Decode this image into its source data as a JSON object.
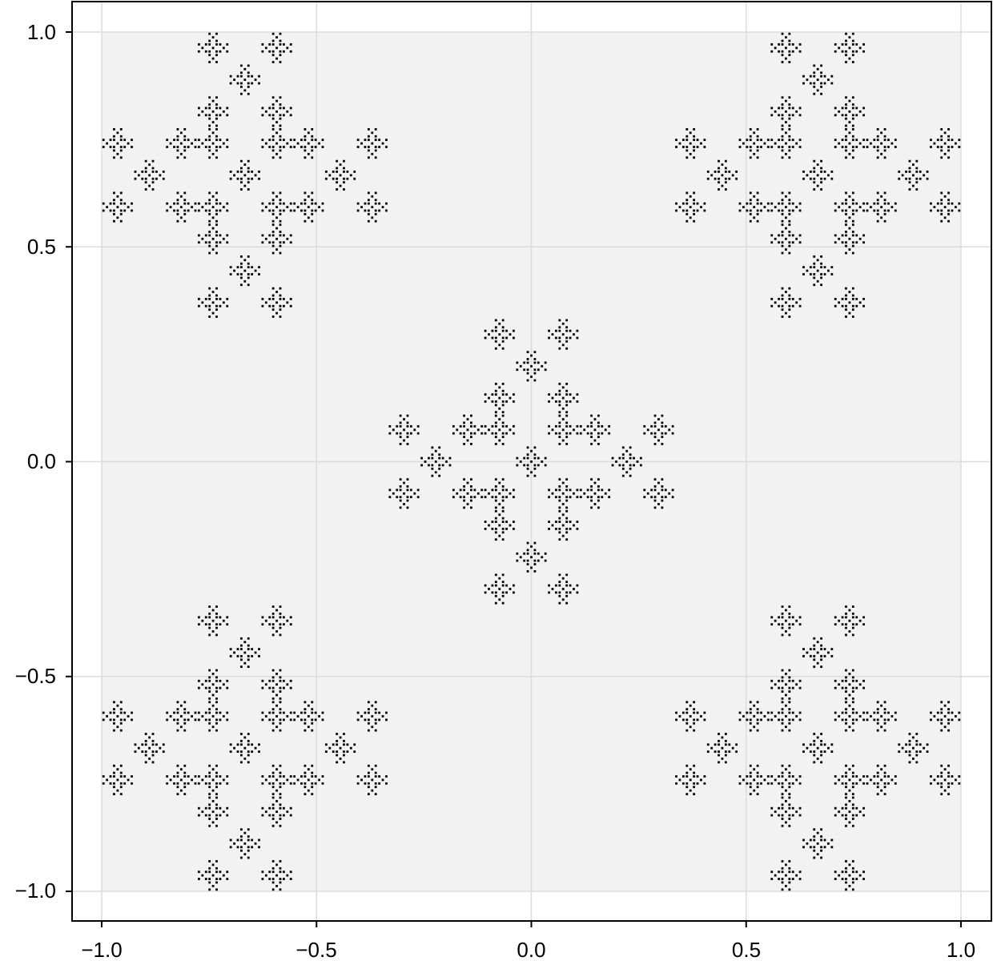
{
  "chart_data": {
    "type": "scatter",
    "title": "",
    "xlabel": "",
    "ylabel": "",
    "xlim": [
      -1.07,
      1.07
    ],
    "ylim": [
      -1.07,
      1.07
    ],
    "x_ticks": [
      -1.0,
      -0.5,
      0.0,
      0.5,
      1.0
    ],
    "y_ticks": [
      -1.0,
      -0.5,
      0.0,
      0.5,
      1.0
    ],
    "x_tick_labels": [
      "−1.0",
      "−0.5",
      "0.0",
      "0.5",
      "1.0"
    ],
    "y_tick_labels": [
      "−1.0",
      "−0.5",
      "0.0",
      "0.5",
      "1.0"
    ],
    "grid": true,
    "series": [
      {
        "generator": "alternating-fractal",
        "depth": 5,
        "points_per_level": 5,
        "level_patterns": [
          "diagonal",
          "cross",
          "diagonal",
          "cross",
          "diagonal"
        ],
        "diagonal_offsets": [
          [
            -1,
            -1
          ],
          [
            1,
            -1
          ],
          [
            0,
            0
          ],
          [
            -1,
            1
          ],
          [
            1,
            1
          ]
        ],
        "cross_offsets": [
          [
            0,
            -1
          ],
          [
            -1,
            0
          ],
          [
            0,
            0
          ],
          [
            1,
            0
          ],
          [
            0,
            1
          ]
        ],
        "scale_per_level": 0.3333333,
        "marker_color": "#000000"
      }
    ]
  },
  "colors": {
    "plot_background": "#f2f2f2",
    "grid": "#dcdcdc",
    "frame": "#000000",
    "points": "#000000"
  }
}
